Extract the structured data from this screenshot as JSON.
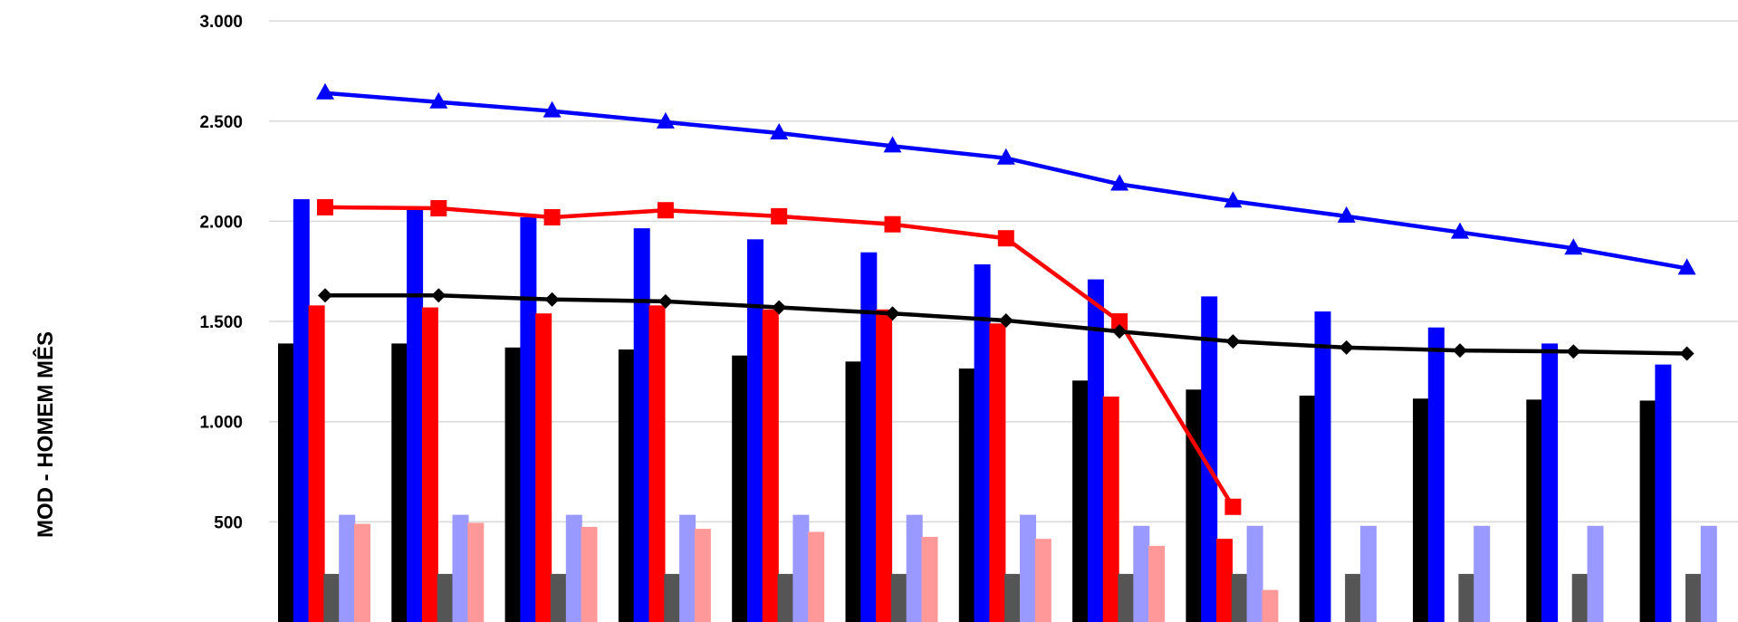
{
  "chart_data": {
    "type": "bar",
    "ylabel": "MOD - HOMEM MÊS",
    "ylim": [
      0,
      3000
    ],
    "y_ticks": [
      "500",
      "1.000",
      "1.500",
      "2.000",
      "2.500",
      "3.000"
    ],
    "y_tick_values": [
      500,
      1000,
      1500,
      2000,
      2500,
      3000
    ],
    "grid": true,
    "group_count": 13,
    "bar_series": [
      {
        "color": "#000000",
        "values": [
          1390,
          1390,
          1370,
          1360,
          1330,
          1300,
          1265,
          1205,
          1160,
          1130,
          1115,
          1110,
          1105
        ]
      },
      {
        "color": "#0000ff",
        "values": [
          2110,
          2060,
          2020,
          1965,
          1910,
          1845,
          1785,
          1710,
          1625,
          1550,
          1470,
          1390,
          1285
        ]
      },
      {
        "color": "#ff0000",
        "values": [
          1580,
          1570,
          1540,
          1580,
          1560,
          1560,
          1490,
          1125,
          415,
          null,
          null,
          null,
          null
        ]
      },
      {
        "color": "#555555",
        "values": [
          240,
          240,
          240,
          240,
          240,
          240,
          240,
          240,
          240,
          240,
          240,
          240,
          240
        ]
      },
      {
        "color": "#9999ff",
        "values": [
          535,
          535,
          535,
          535,
          535,
          535,
          535,
          480,
          480,
          480,
          480,
          480,
          480
        ]
      },
      {
        "color": "#ff9999",
        "values": [
          490,
          495,
          475,
          465,
          450,
          425,
          415,
          380,
          160,
          null,
          null,
          null,
          null
        ]
      }
    ],
    "line_series": [
      {
        "color": "#0000ff",
        "marker": "triangle",
        "values": [
          2640,
          2595,
          2550,
          2495,
          2440,
          2375,
          2315,
          2185,
          2100,
          2025,
          1945,
          1865,
          1765
        ]
      },
      {
        "color": "#ff0000",
        "marker": "square",
        "values": [
          2070,
          2065,
          2020,
          2055,
          2025,
          1985,
          1915,
          1500,
          575,
          null,
          null,
          null,
          null
        ]
      },
      {
        "color": "#000000",
        "marker": "diamond",
        "values": [
          1630,
          1630,
          1610,
          1600,
          1570,
          1540,
          1505,
          1450,
          1400,
          1370,
          1355,
          1350,
          1340
        ]
      }
    ]
  }
}
